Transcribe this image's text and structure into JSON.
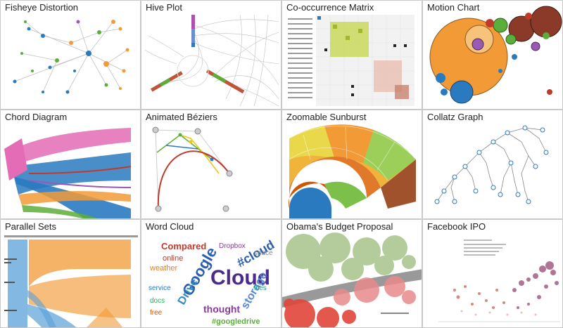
{
  "gallery": {
    "items": [
      {
        "title": "Fisheye Distortion"
      },
      {
        "title": "Hive Plot"
      },
      {
        "title": "Co-occurrence Matrix"
      },
      {
        "title": "Motion Chart"
      },
      {
        "title": "Chord Diagram"
      },
      {
        "title": "Animated Béziers"
      },
      {
        "title": "Zoomable Sunburst"
      },
      {
        "title": "Collatz Graph"
      },
      {
        "title": "Parallel Sets"
      },
      {
        "title": "Word Cloud"
      },
      {
        "title": "Obama's Budget Proposal"
      },
      {
        "title": "Facebook IPO"
      }
    ]
  },
  "word_cloud": {
    "words": [
      "Cloud",
      "Google",
      "Drive",
      "#cloud",
      "storage",
      "Compared",
      "thought",
      "#googledrive",
      "weather",
      "Dropbox",
      "service",
      "online",
      "files",
      "free",
      "space",
      "docs"
    ]
  },
  "colors": {
    "accent_blue": "#2a7ac0",
    "accent_orange": "#f29a36",
    "accent_green": "#5cae3a",
    "accent_pink": "#e46bb5",
    "background": "#d8d8d8"
  }
}
